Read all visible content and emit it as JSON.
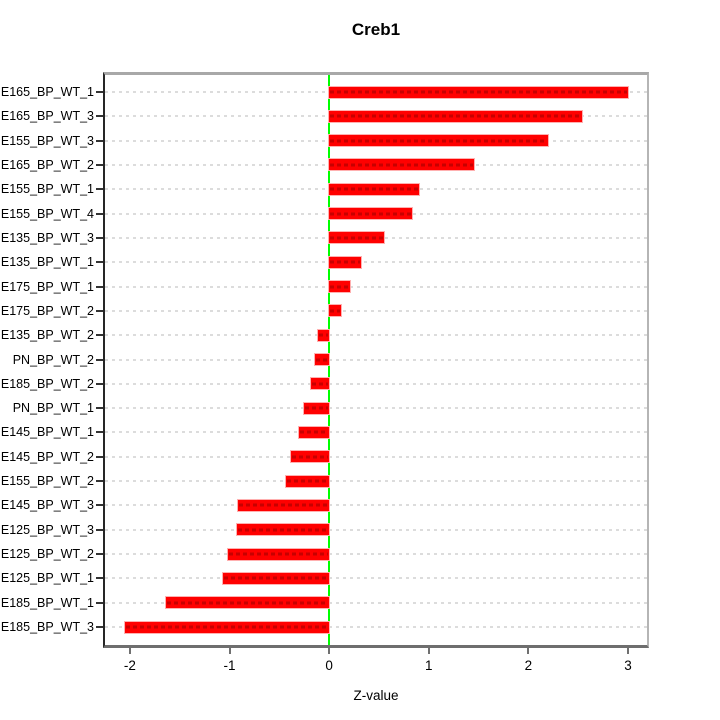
{
  "title": "Creb1",
  "x_axis_label": "Z-value",
  "colors": {
    "bar_fill": "#ff0000",
    "bar_border": "#ffb0b0",
    "zero_line": "#00ff00",
    "gridline": "#dcdcdc",
    "frame_top": "#a8a8a8",
    "frame_bottom": "#6e6e6e",
    "text": "#000000"
  },
  "chart_data": {
    "type": "bar",
    "orientation": "horizontal",
    "title": "Creb1",
    "xlabel": "Z-value",
    "ylabel": "",
    "grid": true,
    "legend_position": "none",
    "xlim": [
      -2.25,
      3.19
    ],
    "x_ticks": [
      -2,
      -1,
      0,
      1,
      2,
      3
    ],
    "zero_reference_line": 0,
    "categories": [
      "E165_BP_WT_1",
      "E165_BP_WT_3",
      "E155_BP_WT_3",
      "E165_BP_WT_2",
      "E155_BP_WT_1",
      "E155_BP_WT_4",
      "E135_BP_WT_3",
      "E135_BP_WT_1",
      "E175_BP_WT_1",
      "E175_BP_WT_2",
      "E135_BP_WT_2",
      "PN_BP_WT_2",
      "E185_BP_WT_2",
      "PN_BP_WT_1",
      "E145_BP_WT_1",
      "E145_BP_WT_2",
      "E155_BP_WT_2",
      "E145_BP_WT_3",
      "E125_BP_WT_3",
      "E125_BP_WT_2",
      "E125_BP_WT_1",
      "E185_BP_WT_1",
      "E185_BP_WT_3"
    ],
    "values": [
      3.0,
      2.54,
      2.2,
      1.45,
      0.9,
      0.83,
      0.55,
      0.32,
      0.21,
      0.12,
      -0.11,
      -0.14,
      -0.18,
      -0.25,
      -0.3,
      -0.38,
      -0.43,
      -0.92,
      -0.93,
      -1.02,
      -1.07,
      -1.64,
      -2.05
    ]
  }
}
